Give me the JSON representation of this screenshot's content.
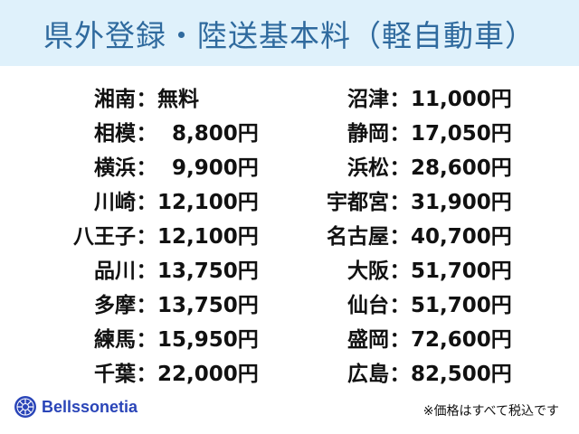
{
  "title": "県外登録・陸送基本料（軽自動車）",
  "separator": "：",
  "left": [
    {
      "name": "湘南",
      "price": "無料"
    },
    {
      "name": "相模",
      "price": "  8,800円"
    },
    {
      "name": "横浜",
      "price": "  9,900円"
    },
    {
      "name": "川崎",
      "price": "12,100円"
    },
    {
      "name": "八王子",
      "price": "12,100円"
    },
    {
      "name": "品川",
      "price": "13,750円"
    },
    {
      "name": "多摩",
      "price": "13,750円"
    },
    {
      "name": "練馬",
      "price": "15,950円"
    },
    {
      "name": "千葉",
      "price": "22,000円"
    }
  ],
  "right": [
    {
      "name": "沼津",
      "price": "11,000円"
    },
    {
      "name": "静岡",
      "price": "17,050円"
    },
    {
      "name": "浜松",
      "price": "28,600円"
    },
    {
      "name": "宇都宮",
      "price": "31,900円"
    },
    {
      "name": "名古屋",
      "price": "40,700円"
    },
    {
      "name": "大阪",
      "price": "51,700円"
    },
    {
      "name": "仙台",
      "price": "51,700円"
    },
    {
      "name": "盛岡",
      "price": "72,600円"
    },
    {
      "name": "広島",
      "price": "82,500円"
    }
  ],
  "brand": {
    "name": "Bellssonetia",
    "icon": "wheel-logo-icon",
    "color": "#2a45b8"
  },
  "note": "※価格はすべて税込です",
  "colors": {
    "header_bg": "#dff1fb",
    "title": "#2f6a9e"
  }
}
